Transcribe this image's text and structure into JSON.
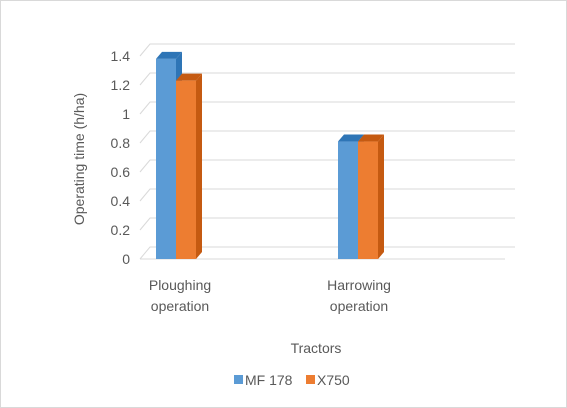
{
  "chart_data": {
    "type": "bar",
    "title": "",
    "xlabel": "Tractors",
    "ylabel": "Operating time (h/ha)",
    "categories": [
      [
        "Ploughing",
        "operation"
      ],
      [
        "Harrowing",
        "operation"
      ]
    ],
    "series": [
      {
        "name": "MF 178",
        "values": [
          1.38,
          0.81
        ],
        "color": "#5b9bd5",
        "side_color": "#2e75b6"
      },
      {
        "name": "X750",
        "values": [
          1.23,
          0.81
        ],
        "color": "#ed7d31",
        "side_color": "#c55a11"
      }
    ],
    "ylim": [
      0,
      1.4
    ],
    "yticks": [
      "0",
      "0.2",
      "0.4",
      "0.6",
      "0.8",
      "1",
      "1.2",
      "1.4"
    ],
    "grid": true,
    "legend_position": "bottom",
    "style": "3d-clustered-column"
  }
}
